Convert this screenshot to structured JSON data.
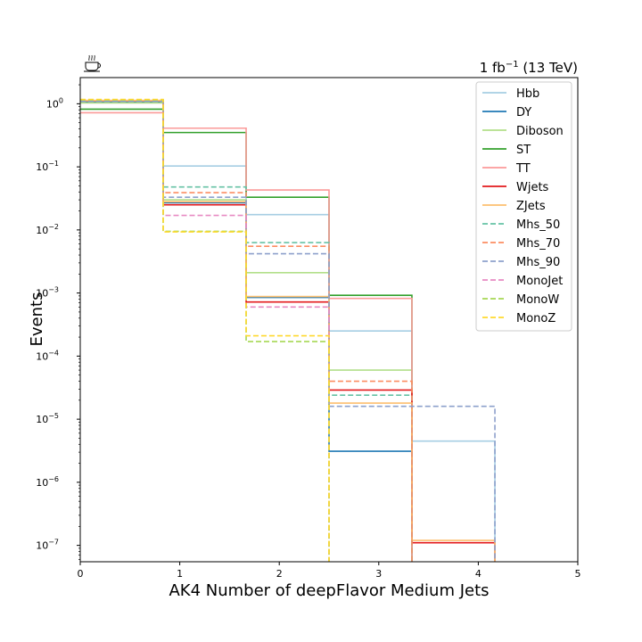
{
  "chart_data": {
    "type": "step",
    "title": "",
    "lumi_label": {
      "main": "1 fb",
      "sup": "−1",
      "rest": " (13 TeV)"
    },
    "xlabel": "AK4 Number of deepFlavor Medium Jets",
    "ylabel": "Events",
    "xlim": [
      0,
      5
    ],
    "ylim": [
      5.5e-08,
      2.6
    ],
    "yscale": "log",
    "x_ticks": [
      "0",
      "1",
      "2",
      "3",
      "4",
      "5"
    ],
    "y_ticks": [
      {
        "value": 1,
        "base": "10",
        "exp": "0"
      },
      {
        "value": 0.1,
        "base": "10",
        "exp": "−1"
      },
      {
        "value": 0.01,
        "base": "10",
        "exp": "−2"
      },
      {
        "value": 0.001,
        "base": "10",
        "exp": "−3"
      },
      {
        "value": 0.0001,
        "base": "10",
        "exp": "−4"
      },
      {
        "value": 1e-05,
        "base": "10",
        "exp": "−5"
      },
      {
        "value": 1e-06,
        "base": "10",
        "exp": "−6"
      },
      {
        "value": 1e-07,
        "base": "10",
        "exp": "−7"
      }
    ],
    "bin_edges": [
      0,
      0.833,
      1.667,
      2.5,
      3.333,
      4.167,
      5
    ],
    "legend_position": "top-right",
    "series": [
      {
        "name": "Hbb",
        "color": "#a6cee3",
        "dashed": false,
        "values": [
          1.08,
          0.103,
          0.0175,
          0.00025,
          4.5e-06,
          null
        ]
      },
      {
        "name": "DY",
        "color": "#1f78b4",
        "dashed": false,
        "values": [
          1.05,
          0.027,
          0.00085,
          3.1e-06,
          null,
          null
        ]
      },
      {
        "name": "Diboson",
        "color": "#b2df8a",
        "dashed": false,
        "values": [
          1.03,
          0.03,
          0.0021,
          6e-05,
          null,
          null
        ]
      },
      {
        "name": "ST",
        "color": "#33a02c",
        "dashed": false,
        "values": [
          0.82,
          0.35,
          0.033,
          0.00092,
          null,
          null
        ]
      },
      {
        "name": "TT",
        "color": "#fb9a99",
        "dashed": false,
        "values": [
          0.72,
          0.41,
          0.043,
          0.00082,
          null,
          null
        ]
      },
      {
        "name": "Wjets",
        "color": "#e31a1c",
        "dashed": false,
        "values": [
          1.12,
          0.025,
          0.00072,
          2.9e-05,
          1.1e-07,
          null
        ]
      },
      {
        "name": "ZJets",
        "color": "#fdbf6f",
        "dashed": false,
        "values": [
          1.13,
          0.028,
          0.00088,
          1.8e-05,
          1.2e-07,
          null
        ]
      },
      {
        "name": "Mhs_50",
        "color": "#66c2a5",
        "dashed": true,
        "values": [
          1.1,
          0.048,
          0.0063,
          2.4e-05,
          null,
          null
        ]
      },
      {
        "name": "Mhs_70",
        "color": "#fc8d62",
        "dashed": true,
        "values": [
          1.1,
          0.039,
          0.0055,
          4e-05,
          null,
          null
        ]
      },
      {
        "name": "Mhs_90",
        "color": "#8da0cb",
        "dashed": true,
        "values": [
          1.1,
          0.033,
          0.0042,
          1.6e-05,
          1.6e-05,
          null
        ]
      },
      {
        "name": "MonoJet",
        "color": "#e78ac3",
        "dashed": true,
        "values": [
          1.15,
          0.017,
          0.0006,
          null,
          null,
          null
        ]
      },
      {
        "name": "MonoW",
        "color": "#a6d854",
        "dashed": true,
        "values": [
          1.15,
          0.0095,
          0.00017,
          null,
          null,
          null
        ]
      },
      {
        "name": "MonoZ",
        "color": "#ffd92f",
        "dashed": true,
        "values": [
          1.17,
          0.0093,
          0.00021,
          null,
          null,
          null
        ]
      }
    ]
  },
  "logo": {
    "icon": "coffee-cup-icon"
  }
}
